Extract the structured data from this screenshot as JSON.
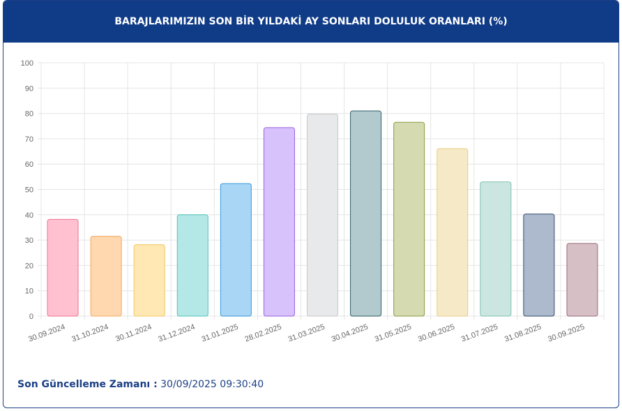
{
  "chart_data": {
    "type": "bar",
    "title": "BARAJLARIMIZIN SON BİR YILDAKİ AY SONLARI DOLULUK ORANLARI (%)",
    "categories": [
      "30.09.2024",
      "31.10.2024",
      "30.11.2024",
      "31.12.2024",
      "31.01.2025",
      "28.02.2025",
      "31.03.2025",
      "30.04.2025",
      "31.05.2025",
      "30.06.2025",
      "31.07.2025",
      "31.08.2025",
      "30.09.2025"
    ],
    "values": [
      38.2,
      31.5,
      28.2,
      40.0,
      52.3,
      74.4,
      79.8,
      81.0,
      76.5,
      66.1,
      53.0,
      40.3,
      28.7
    ],
    "colors": [
      "#ffc0d0",
      "#ffd8b0",
      "#ffe8b4",
      "#b4e8e6",
      "#aad6f6",
      "#d8c2fc",
      "#e8e9ea",
      "#b2cacd",
      "#d5dab1",
      "#f5e9c8",
      "#cbe6e1",
      "#adbacd",
      "#d6bfc5"
    ],
    "border_colors": [
      "#f07090",
      "#f0a860",
      "#f0c860",
      "#50c0b8",
      "#3898d8",
      "#9860e0",
      "#c8c8c8",
      "#2e5e66",
      "#8a9a40",
      "#e8cc80",
      "#80c0b0",
      "#33486a",
      "#9a6a78"
    ],
    "ylim": [
      0,
      100
    ],
    "yticks": [
      0,
      10,
      20,
      30,
      40,
      50,
      60,
      70,
      80,
      90,
      100
    ],
    "grid": true
  },
  "footer": {
    "label": "Son Güncelleme Zamanı :",
    "value": "30/09/2025 09:30:40"
  }
}
